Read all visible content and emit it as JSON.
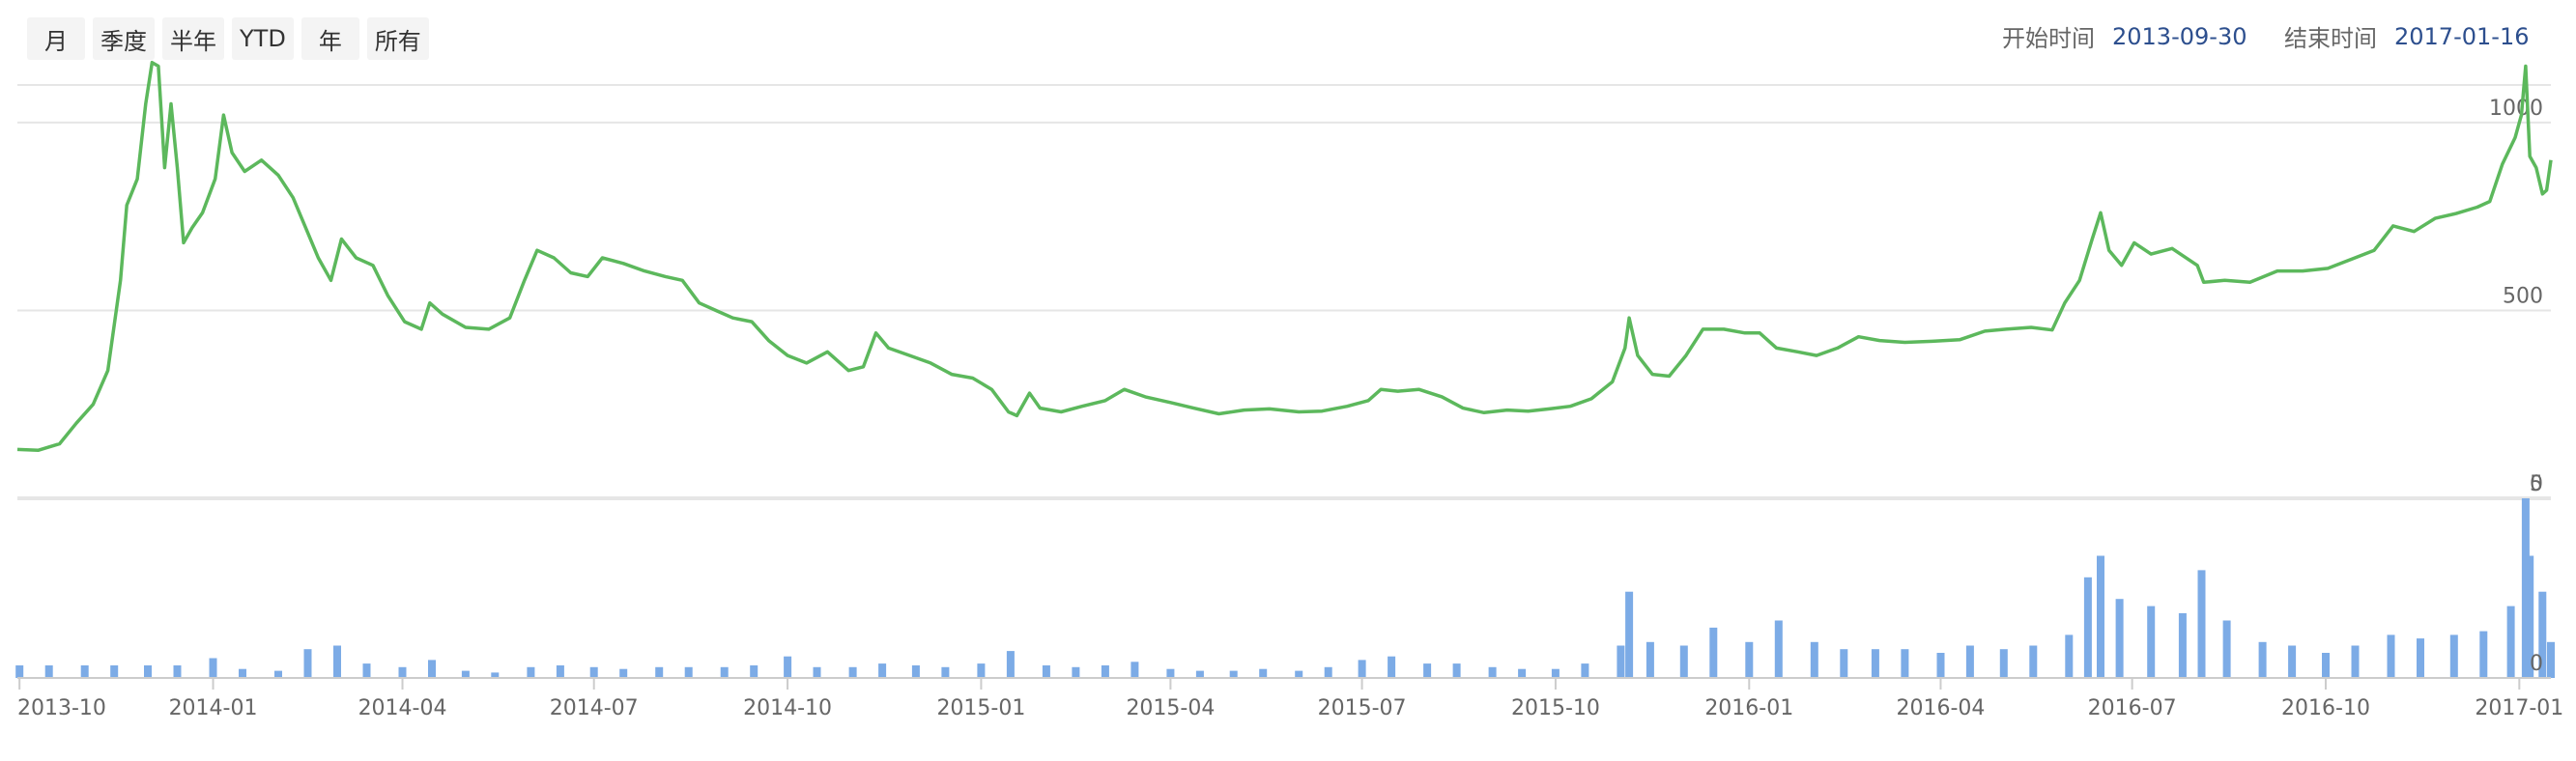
{
  "toolbar": {
    "range_buttons": [
      "月",
      "季度",
      "半年",
      "YTD",
      "年",
      "所有"
    ],
    "start_label": "开始时间",
    "start_date": "2013-09-30",
    "end_label": "结束时间",
    "end_date": "2017-01-16"
  },
  "colors": {
    "price_line": "#5cb85c",
    "volume_bars": "#7cabe6",
    "date_text": "#2d4f8e"
  },
  "chart_data": [
    {
      "type": "line",
      "name": "price-chart",
      "x_range": [
        "2013-09-30",
        "2017-01-16"
      ],
      "ylim": [
        0,
        1100
      ],
      "yticks": [
        0,
        500,
        1000
      ],
      "ytick_labels": [
        "0",
        "500",
        "1000"
      ],
      "grid": true,
      "series": [
        {
          "points": [
            [
              "2013-09-30",
              130
            ],
            [
              "2013-10-10",
              128
            ],
            [
              "2013-10-20",
              145
            ],
            [
              "2013-10-28",
              200
            ],
            [
              "2013-11-05",
              250
            ],
            [
              "2013-11-12",
              340
            ],
            [
              "2013-11-18",
              580
            ],
            [
              "2013-11-21",
              780
            ],
            [
              "2013-11-26",
              850
            ],
            [
              "2013-11-30",
              1050
            ],
            [
              "2013-12-03",
              1160
            ],
            [
              "2013-12-06",
              1150
            ],
            [
              "2013-12-09",
              880
            ],
            [
              "2013-12-12",
              1050
            ],
            [
              "2013-12-15",
              880
            ],
            [
              "2013-12-18",
              680
            ],
            [
              "2013-12-22",
              720
            ],
            [
              "2013-12-27",
              760
            ],
            [
              "2014-01-02",
              850
            ],
            [
              "2014-01-06",
              1020
            ],
            [
              "2014-01-10",
              920
            ],
            [
              "2014-01-16",
              870
            ],
            [
              "2014-01-24",
              900
            ],
            [
              "2014-02-01",
              860
            ],
            [
              "2014-02-08",
              800
            ],
            [
              "2014-02-14",
              720
            ],
            [
              "2014-02-20",
              640
            ],
            [
              "2014-02-26",
              580
            ],
            [
              "2014-03-03",
              690
            ],
            [
              "2014-03-10",
              640
            ],
            [
              "2014-03-18",
              620
            ],
            [
              "2014-03-25",
              540
            ],
            [
              "2014-04-02",
              470
            ],
            [
              "2014-04-10",
              450
            ],
            [
              "2014-04-14",
              520
            ],
            [
              "2014-04-20",
              490
            ],
            [
              "2014-05-01",
              455
            ],
            [
              "2014-05-12",
              450
            ],
            [
              "2014-05-22",
              480
            ],
            [
              "2014-05-29",
              580
            ],
            [
              "2014-06-04",
              660
            ],
            [
              "2014-06-12",
              640
            ],
            [
              "2014-06-20",
              600
            ],
            [
              "2014-06-28",
              590
            ],
            [
              "2014-07-05",
              640
            ],
            [
              "2014-07-15",
              625
            ],
            [
              "2014-07-25",
              605
            ],
            [
              "2014-08-04",
              590
            ],
            [
              "2014-08-12",
              580
            ],
            [
              "2014-08-20",
              520
            ],
            [
              "2014-08-28",
              500
            ],
            [
              "2014-09-05",
              480
            ],
            [
              "2014-09-14",
              470
            ],
            [
              "2014-09-22",
              420
            ],
            [
              "2014-10-01",
              380
            ],
            [
              "2014-10-10",
              360
            ],
            [
              "2014-10-20",
              390
            ],
            [
              "2014-10-30",
              340
            ],
            [
              "2014-11-06",
              350
            ],
            [
              "2014-11-12",
              440
            ],
            [
              "2014-11-18",
              400
            ],
            [
              "2014-11-28",
              380
            ],
            [
              "2014-12-08",
              360
            ],
            [
              "2014-12-18",
              330
            ],
            [
              "2014-12-28",
              320
            ],
            [
              "2015-01-06",
              290
            ],
            [
              "2015-01-14",
              230
            ],
            [
              "2015-01-18",
              220
            ],
            [
              "2015-01-24",
              280
            ],
            [
              "2015-01-29",
              240
            ],
            [
              "2015-02-08",
              230
            ],
            [
              "2015-02-18",
              245
            ],
            [
              "2015-03-01",
              260
            ],
            [
              "2015-03-10",
              290
            ],
            [
              "2015-03-20",
              270
            ],
            [
              "2015-04-01",
              255
            ],
            [
              "2015-04-12",
              240
            ],
            [
              "2015-04-24",
              225
            ],
            [
              "2015-05-06",
              235
            ],
            [
              "2015-05-18",
              238
            ],
            [
              "2015-06-01",
              230
            ],
            [
              "2015-06-12",
              232
            ],
            [
              "2015-06-24",
              245
            ],
            [
              "2015-07-04",
              260
            ],
            [
              "2015-07-10",
              290
            ],
            [
              "2015-07-18",
              285
            ],
            [
              "2015-07-28",
              290
            ],
            [
              "2015-08-08",
              270
            ],
            [
              "2015-08-18",
              240
            ],
            [
              "2015-08-28",
              228
            ],
            [
              "2015-09-08",
              235
            ],
            [
              "2015-09-18",
              232
            ],
            [
              "2015-09-28",
              238
            ],
            [
              "2015-10-08",
              245
            ],
            [
              "2015-10-18",
              265
            ],
            [
              "2015-10-28",
              310
            ],
            [
              "2015-11-03",
              400
            ],
            [
              "2015-11-05",
              480
            ],
            [
              "2015-11-09",
              380
            ],
            [
              "2015-11-16",
              330
            ],
            [
              "2015-11-24",
              325
            ],
            [
              "2015-12-02",
              380
            ],
            [
              "2015-12-10",
              450
            ],
            [
              "2015-12-20",
              450
            ],
            [
              "2015-12-30",
              440
            ],
            [
              "2016-01-06",
              440
            ],
            [
              "2016-01-14",
              400
            ],
            [
              "2016-01-24",
              390
            ],
            [
              "2016-02-02",
              380
            ],
            [
              "2016-02-12",
              400
            ],
            [
              "2016-02-22",
              430
            ],
            [
              "2016-03-03",
              420
            ],
            [
              "2016-03-15",
              415
            ],
            [
              "2016-03-28",
              418
            ],
            [
              "2016-04-10",
              422
            ],
            [
              "2016-04-22",
              445
            ],
            [
              "2016-05-02",
              450
            ],
            [
              "2016-05-14",
              455
            ],
            [
              "2016-05-24",
              448
            ],
            [
              "2016-05-30",
              520
            ],
            [
              "2016-06-06",
              580
            ],
            [
              "2016-06-12",
              690
            ],
            [
              "2016-06-16",
              760
            ],
            [
              "2016-06-20",
              660
            ],
            [
              "2016-06-26",
              620
            ],
            [
              "2016-07-02",
              680
            ],
            [
              "2016-07-10",
              650
            ],
            [
              "2016-07-20",
              665
            ],
            [
              "2016-08-01",
              620
            ],
            [
              "2016-08-04",
              575
            ],
            [
              "2016-08-14",
              580
            ],
            [
              "2016-08-26",
              575
            ],
            [
              "2016-09-08",
              605
            ],
            [
              "2016-09-20",
              605
            ],
            [
              "2016-10-02",
              612
            ],
            [
              "2016-10-14",
              638
            ],
            [
              "2016-10-24",
              660
            ],
            [
              "2016-11-02",
              725
            ],
            [
              "2016-11-12",
              710
            ],
            [
              "2016-11-22",
              745
            ],
            [
              "2016-12-02",
              758
            ],
            [
              "2016-12-12",
              775
            ],
            [
              "2016-12-18",
              790
            ],
            [
              "2016-12-24",
              890
            ],
            [
              "2016-12-30",
              960
            ],
            [
              "2017-01-02",
              1020
            ],
            [
              "2017-01-04",
              1150
            ],
            [
              "2017-01-06",
              910
            ],
            [
              "2017-01-09",
              880
            ],
            [
              "2017-01-12",
              810
            ],
            [
              "2017-01-14",
              820
            ],
            [
              "2017-01-16",
              900
            ]
          ]
        }
      ]
    },
    {
      "type": "bar",
      "name": "volume-chart",
      "x_range": [
        "2013-09-30",
        "2017-01-16"
      ],
      "ylim": [
        0,
        5
      ],
      "yticks": [
        0,
        5
      ],
      "ytick_labels": [
        "0",
        "5"
      ],
      "grid": true,
      "series": [
        {
          "points": [
            [
              "2013-10-01",
              0.35
            ],
            [
              "2013-10-15",
              0.35
            ],
            [
              "2013-11-01",
              0.35
            ],
            [
              "2013-11-15",
              0.35
            ],
            [
              "2013-12-01",
              0.35
            ],
            [
              "2013-12-15",
              0.35
            ],
            [
              "2014-01-01",
              0.55
            ],
            [
              "2014-01-15",
              0.25
            ],
            [
              "2014-02-01",
              0.2
            ],
            [
              "2014-02-15",
              0.8
            ],
            [
              "2014-03-01",
              0.9
            ],
            [
              "2014-03-15",
              0.4
            ],
            [
              "2014-04-01",
              0.3
            ],
            [
              "2014-04-15",
              0.5
            ],
            [
              "2014-05-01",
              0.2
            ],
            [
              "2014-05-15",
              0.15
            ],
            [
              "2014-06-01",
              0.3
            ],
            [
              "2014-06-15",
              0.35
            ],
            [
              "2014-07-01",
              0.3
            ],
            [
              "2014-07-15",
              0.25
            ],
            [
              "2014-08-01",
              0.3
            ],
            [
              "2014-08-15",
              0.3
            ],
            [
              "2014-09-01",
              0.3
            ],
            [
              "2014-09-15",
              0.35
            ],
            [
              "2014-10-01",
              0.6
            ],
            [
              "2014-10-15",
              0.3
            ],
            [
              "2014-11-01",
              0.3
            ],
            [
              "2014-11-15",
              0.4
            ],
            [
              "2014-12-01",
              0.35
            ],
            [
              "2014-12-15",
              0.3
            ],
            [
              "2015-01-01",
              0.4
            ],
            [
              "2015-01-15",
              0.75
            ],
            [
              "2015-02-01",
              0.35
            ],
            [
              "2015-02-15",
              0.3
            ],
            [
              "2015-03-01",
              0.35
            ],
            [
              "2015-03-15",
              0.45
            ],
            [
              "2015-04-01",
              0.25
            ],
            [
              "2015-04-15",
              0.2
            ],
            [
              "2015-05-01",
              0.2
            ],
            [
              "2015-05-15",
              0.25
            ],
            [
              "2015-06-01",
              0.2
            ],
            [
              "2015-06-15",
              0.3
            ],
            [
              "2015-07-01",
              0.5
            ],
            [
              "2015-07-15",
              0.6
            ],
            [
              "2015-08-01",
              0.4
            ],
            [
              "2015-08-15",
              0.4
            ],
            [
              "2015-09-01",
              0.3
            ],
            [
              "2015-09-15",
              0.25
            ],
            [
              "2015-10-01",
              0.25
            ],
            [
              "2015-10-15",
              0.4
            ],
            [
              "2015-11-01",
              0.9
            ],
            [
              "2015-11-05",
              2.4
            ],
            [
              "2015-11-15",
              1.0
            ],
            [
              "2015-12-01",
              0.9
            ],
            [
              "2015-12-15",
              1.4
            ],
            [
              "2016-01-01",
              1.0
            ],
            [
              "2016-01-15",
              1.6
            ],
            [
              "2016-02-01",
              1.0
            ],
            [
              "2016-02-15",
              0.8
            ],
            [
              "2016-03-01",
              0.8
            ],
            [
              "2016-03-15",
              0.8
            ],
            [
              "2016-04-01",
              0.7
            ],
            [
              "2016-04-15",
              0.9
            ],
            [
              "2016-05-01",
              0.8
            ],
            [
              "2016-05-15",
              0.9
            ],
            [
              "2016-06-01",
              1.2
            ],
            [
              "2016-06-10",
              2.8
            ],
            [
              "2016-06-16",
              3.4
            ],
            [
              "2016-06-25",
              2.2
            ],
            [
              "2016-07-10",
              2.0
            ],
            [
              "2016-07-25",
              1.8
            ],
            [
              "2016-08-03",
              3.0
            ],
            [
              "2016-08-15",
              1.6
            ],
            [
              "2016-09-01",
              1.0
            ],
            [
              "2016-09-15",
              0.9
            ],
            [
              "2016-10-01",
              0.7
            ],
            [
              "2016-10-15",
              0.9
            ],
            [
              "2016-11-01",
              1.2
            ],
            [
              "2016-11-15",
              1.1
            ],
            [
              "2016-12-01",
              1.2
            ],
            [
              "2016-12-15",
              1.3
            ],
            [
              "2016-12-28",
              2.0
            ],
            [
              "2017-01-04",
              5.0
            ],
            [
              "2017-01-06",
              3.4
            ],
            [
              "2017-01-12",
              2.4
            ],
            [
              "2017-01-16",
              1.0
            ]
          ]
        }
      ]
    }
  ],
  "x_axis": {
    "ticks": [
      "2013-10-01",
      "2014-01-01",
      "2014-04-01",
      "2014-07-01",
      "2014-10-01",
      "2015-01-01",
      "2015-04-01",
      "2015-07-01",
      "2015-10-01",
      "2016-01-01",
      "2016-04-01",
      "2016-07-01",
      "2016-10-01",
      "2017-01-01"
    ],
    "labels": [
      "2013-10",
      "2014-01",
      "2014-04",
      "2014-07",
      "2014-10",
      "2015-01",
      "2015-04",
      "2015-07",
      "2015-10",
      "2016-01",
      "2016-04",
      "2016-07",
      "2016-10",
      "2017-01"
    ]
  }
}
